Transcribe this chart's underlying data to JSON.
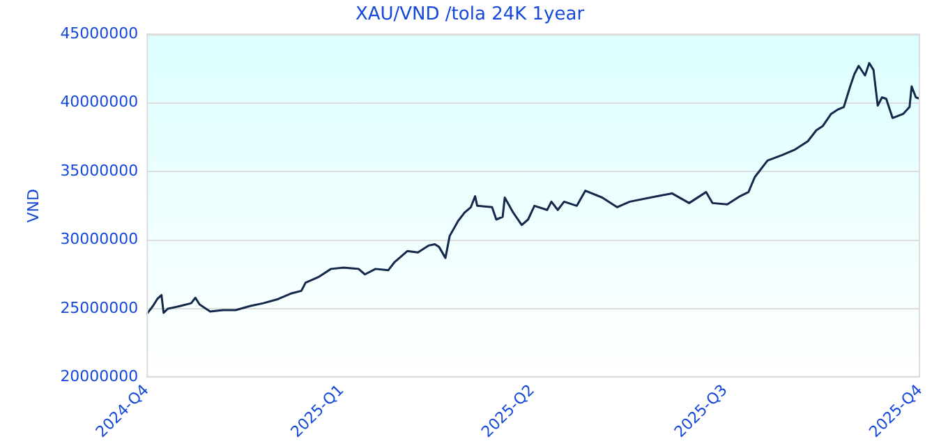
{
  "chart_data": {
    "type": "line",
    "title": "XAU/VND /tola 24K 1year",
    "ylabel": "VND",
    "x": [
      "2024-10-01",
      "2024-10-04",
      "2024-10-06",
      "2024-10-08",
      "2024-10-09",
      "2024-10-11",
      "2024-10-17",
      "2024-10-22",
      "2024-10-24",
      "2024-10-26",
      "2024-10-31",
      "2024-11-06",
      "2024-11-12",
      "2024-11-19",
      "2024-11-25",
      "2024-12-02",
      "2024-12-08",
      "2024-12-13",
      "2024-12-15",
      "2024-12-21",
      "2024-12-27",
      "2025-01-02",
      "2025-01-09",
      "2025-01-12",
      "2025-01-17",
      "2025-01-23",
      "2025-01-26",
      "2025-02-01",
      "2025-02-06",
      "2025-02-11",
      "2025-02-14",
      "2025-02-16",
      "2025-02-19",
      "2025-02-21",
      "2025-02-25",
      "2025-02-28",
      "2025-03-03",
      "2025-03-05",
      "2025-03-06",
      "2025-03-13",
      "2025-03-15",
      "2025-03-18",
      "2025-03-19",
      "2025-03-23",
      "2025-03-27",
      "2025-03-30",
      "2025-04-02",
      "2025-04-08",
      "2025-04-10",
      "2025-04-13",
      "2025-04-16",
      "2025-04-22",
      "2025-04-26",
      "2025-05-04",
      "2025-05-11",
      "2025-05-17",
      "2025-05-30",
      "2025-06-06",
      "2025-06-14",
      "2025-06-22",
      "2025-06-25",
      "2025-07-02",
      "2025-07-08",
      "2025-07-12",
      "2025-07-15",
      "2025-07-21",
      "2025-07-28",
      "2025-08-03",
      "2025-08-09",
      "2025-08-13",
      "2025-08-16",
      "2025-08-20",
      "2025-08-23",
      "2025-08-26",
      "2025-08-29",
      "2025-08-31",
      "2025-09-02",
      "2025-09-05",
      "2025-09-07",
      "2025-09-09",
      "2025-09-11",
      "2025-09-13",
      "2025-09-15",
      "2025-09-18",
      "2025-09-23",
      "2025-09-26",
      "2025-09-27",
      "2025-09-29",
      "2025-10-01"
    ],
    "series": [
      {
        "color": "#14284b",
        "values": [
          24600000,
          25200000,
          25700000,
          26000000,
          24700000,
          25000000,
          25200000,
          25400000,
          25800000,
          25300000,
          24800000,
          24900000,
          24900000,
          25200000,
          25400000,
          25700000,
          26100000,
          26300000,
          26900000,
          27300000,
          27900000,
          28000000,
          27900000,
          27500000,
          27900000,
          27800000,
          28400000,
          29200000,
          29100000,
          29600000,
          29700000,
          29500000,
          28700000,
          30300000,
          31400000,
          32000000,
          32400000,
          33200000,
          32500000,
          32400000,
          31500000,
          31700000,
          33100000,
          32000000,
          31100000,
          31500000,
          32500000,
          32200000,
          32800000,
          32200000,
          32800000,
          32500000,
          33600000,
          33100000,
          32400000,
          32800000,
          33200000,
          33400000,
          32700000,
          33500000,
          32700000,
          32600000,
          33200000,
          33500000,
          34600000,
          35800000,
          36200000,
          36600000,
          37200000,
          38000000,
          38300000,
          39200000,
          39500000,
          39700000,
          41200000,
          42100000,
          42700000,
          42000000,
          42900000,
          42400000,
          39800000,
          40400000,
          40300000,
          38900000,
          39200000,
          39700000,
          41200000,
          40400000,
          40300000
        ]
      }
    ],
    "xlim": [
      "2024-10-01",
      "2025-10-01"
    ],
    "xticks": [
      {
        "value": "2024-10-01",
        "label": "2024-Q4"
      },
      {
        "value": "2025-01-01",
        "label": "2025-Q1"
      },
      {
        "value": "2025-04-01",
        "label": "2025-Q2"
      },
      {
        "value": "2025-07-01",
        "label": "2025-Q3"
      },
      {
        "value": "2025-10-01",
        "label": "2025-Q4"
      }
    ],
    "ylim": [
      20000000,
      45000000
    ],
    "yticks": [
      20000000,
      25000000,
      30000000,
      35000000,
      40000000,
      45000000
    ],
    "grid": "y",
    "legend": false,
    "marker": "none",
    "line_style": "solid"
  }
}
